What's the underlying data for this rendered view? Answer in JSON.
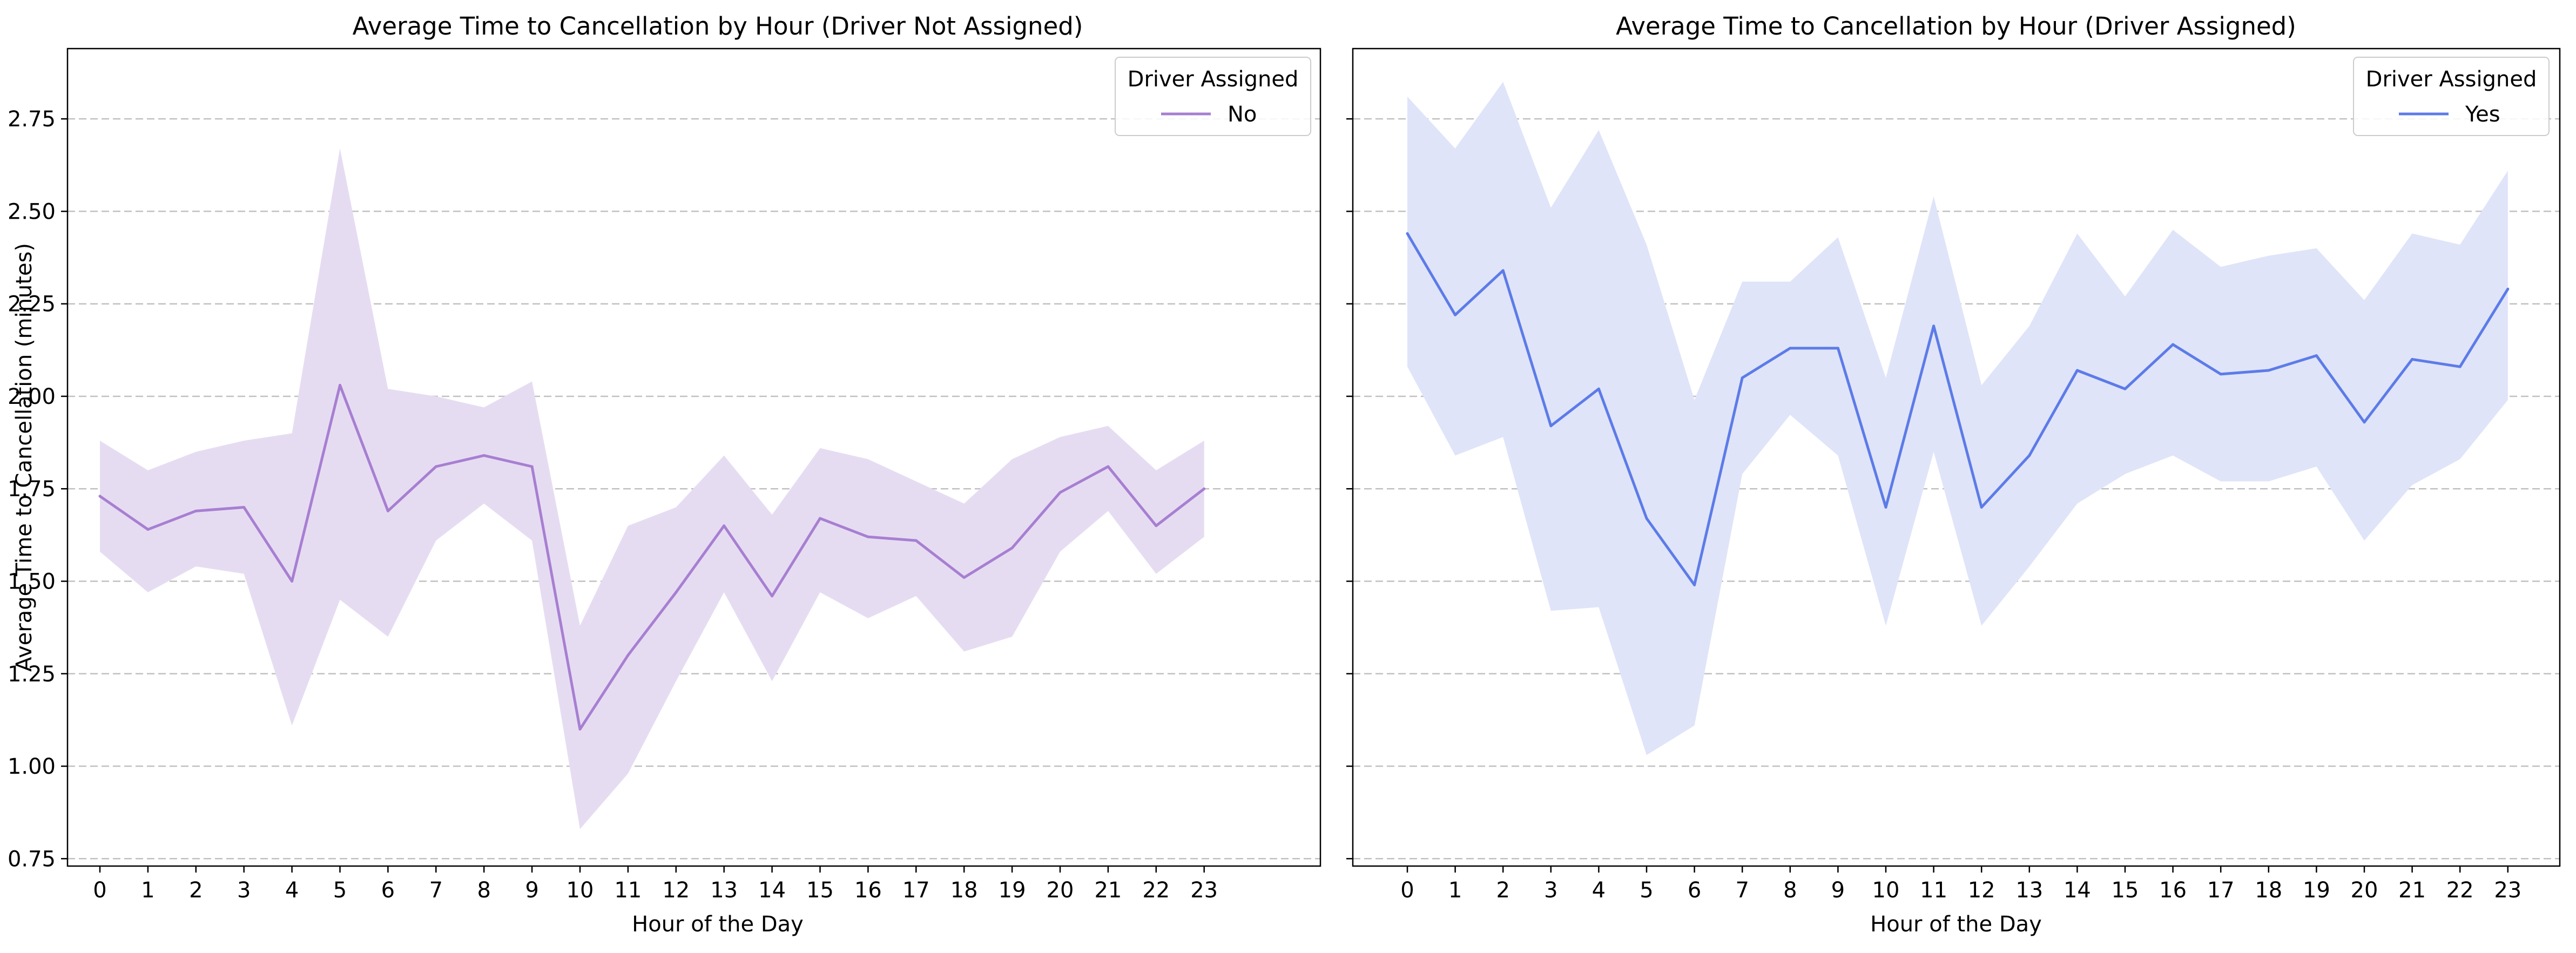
{
  "chart_data": [
    {
      "type": "line",
      "title": "Average Time to Cancellation by Hour (Driver Not Assigned)",
      "xlabel": "Hour of the Day",
      "ylabel": "Average Time to Cancellation (minutes)",
      "ylim": [
        0.73,
        2.94
      ],
      "yticks": [
        "0.75",
        "1.00",
        "1.25",
        "1.50",
        "1.75",
        "2.00",
        "2.25",
        "2.50",
        "2.75"
      ],
      "categories": [
        "0",
        "1",
        "2",
        "3",
        "4",
        "5",
        "6",
        "7",
        "8",
        "9",
        "10",
        "11",
        "12",
        "13",
        "14",
        "15",
        "16",
        "17",
        "18",
        "19",
        "20",
        "21",
        "22",
        "23"
      ],
      "grid": "y dashed",
      "legend": {
        "title": "Driver Assigned",
        "position": "top-right"
      },
      "series": [
        {
          "name": "No",
          "color": "#a77fd1",
          "band_color": "#e6dcf2",
          "values": [
            1.73,
            1.64,
            1.69,
            1.7,
            1.5,
            2.03,
            1.69,
            1.81,
            1.84,
            1.81,
            1.1,
            1.3,
            1.47,
            1.65,
            1.46,
            1.67,
            1.62,
            1.61,
            1.51,
            1.59,
            1.74,
            1.81,
            1.65,
            1.75
          ],
          "ci_low": [
            1.58,
            1.47,
            1.54,
            1.52,
            1.11,
            1.45,
            1.35,
            1.61,
            1.71,
            1.61,
            0.83,
            0.98,
            1.23,
            1.47,
            1.23,
            1.47,
            1.4,
            1.46,
            1.31,
            1.35,
            1.58,
            1.69,
            1.52,
            1.62
          ],
          "ci_high": [
            1.88,
            1.8,
            1.85,
            1.88,
            1.9,
            2.67,
            2.02,
            2.0,
            1.97,
            2.04,
            1.38,
            1.65,
            1.7,
            1.84,
            1.68,
            1.86,
            1.83,
            1.77,
            1.71,
            1.83,
            1.89,
            1.92,
            1.8,
            1.88
          ]
        }
      ]
    },
    {
      "type": "line",
      "title": "Average Time to Cancellation by Hour (Driver Assigned)",
      "xlabel": "Hour of the Day",
      "ylabel": "",
      "ylim": [
        0.73,
        2.94
      ],
      "categories": [
        "0",
        "1",
        "2",
        "3",
        "4",
        "5",
        "6",
        "7",
        "8",
        "9",
        "10",
        "11",
        "12",
        "13",
        "14",
        "15",
        "16",
        "17",
        "18",
        "19",
        "20",
        "21",
        "22",
        "23"
      ],
      "grid": "y dashed",
      "legend": {
        "title": "Driver Assigned",
        "position": "top-right"
      },
      "series": [
        {
          "name": "Yes",
          "color": "#5d7be8",
          "band_color": "#dfe4f9",
          "values": [
            2.44,
            2.22,
            2.34,
            1.92,
            2.02,
            1.67,
            1.49,
            2.05,
            2.13,
            2.13,
            1.7,
            2.19,
            1.7,
            1.84,
            2.07,
            2.02,
            2.14,
            2.06,
            2.07,
            2.11,
            1.93,
            2.1,
            2.08,
            2.29
          ],
          "ci_low": [
            2.08,
            1.84,
            1.89,
            1.42,
            1.43,
            1.03,
            1.11,
            1.79,
            1.95,
            1.84,
            1.38,
            1.85,
            1.38,
            1.54,
            1.71,
            1.79,
            1.84,
            1.77,
            1.77,
            1.81,
            1.61,
            1.76,
            1.83,
            1.99
          ],
          "ci_high": [
            2.81,
            2.67,
            2.85,
            2.51,
            2.72,
            2.41,
            1.99,
            2.31,
            2.31,
            2.43,
            2.05,
            2.54,
            2.03,
            2.19,
            2.44,
            2.27,
            2.45,
            2.35,
            2.38,
            2.4,
            2.26,
            2.44,
            2.41,
            2.61
          ]
        }
      ]
    }
  ]
}
